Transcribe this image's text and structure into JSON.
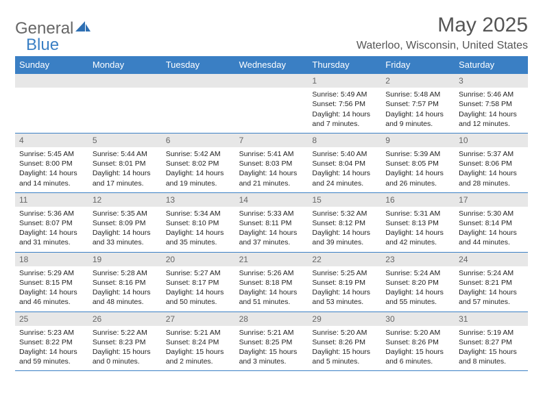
{
  "logo": {
    "text1": "General",
    "text2": "Blue"
  },
  "title": "May 2025",
  "location": "Waterloo, Wisconsin, United States",
  "colors": {
    "header_bg": "#3a7fc4",
    "header_text": "#ffffff",
    "daynum_bg": "#e7e7e7",
    "daynum_text": "#666666",
    "body_text": "#222222",
    "page_bg": "#ffffff"
  },
  "day_names": [
    "Sunday",
    "Monday",
    "Tuesday",
    "Wednesday",
    "Thursday",
    "Friday",
    "Saturday"
  ],
  "weeks": [
    [
      {
        "n": "",
        "sr": "",
        "ss": "",
        "dl": ""
      },
      {
        "n": "",
        "sr": "",
        "ss": "",
        "dl": ""
      },
      {
        "n": "",
        "sr": "",
        "ss": "",
        "dl": ""
      },
      {
        "n": "",
        "sr": "",
        "ss": "",
        "dl": ""
      },
      {
        "n": "1",
        "sr": "Sunrise: 5:49 AM",
        "ss": "Sunset: 7:56 PM",
        "dl": "Daylight: 14 hours and 7 minutes."
      },
      {
        "n": "2",
        "sr": "Sunrise: 5:48 AM",
        "ss": "Sunset: 7:57 PM",
        "dl": "Daylight: 14 hours and 9 minutes."
      },
      {
        "n": "3",
        "sr": "Sunrise: 5:46 AM",
        "ss": "Sunset: 7:58 PM",
        "dl": "Daylight: 14 hours and 12 minutes."
      }
    ],
    [
      {
        "n": "4",
        "sr": "Sunrise: 5:45 AM",
        "ss": "Sunset: 8:00 PM",
        "dl": "Daylight: 14 hours and 14 minutes."
      },
      {
        "n": "5",
        "sr": "Sunrise: 5:44 AM",
        "ss": "Sunset: 8:01 PM",
        "dl": "Daylight: 14 hours and 17 minutes."
      },
      {
        "n": "6",
        "sr": "Sunrise: 5:42 AM",
        "ss": "Sunset: 8:02 PM",
        "dl": "Daylight: 14 hours and 19 minutes."
      },
      {
        "n": "7",
        "sr": "Sunrise: 5:41 AM",
        "ss": "Sunset: 8:03 PM",
        "dl": "Daylight: 14 hours and 21 minutes."
      },
      {
        "n": "8",
        "sr": "Sunrise: 5:40 AM",
        "ss": "Sunset: 8:04 PM",
        "dl": "Daylight: 14 hours and 24 minutes."
      },
      {
        "n": "9",
        "sr": "Sunrise: 5:39 AM",
        "ss": "Sunset: 8:05 PM",
        "dl": "Daylight: 14 hours and 26 minutes."
      },
      {
        "n": "10",
        "sr": "Sunrise: 5:37 AM",
        "ss": "Sunset: 8:06 PM",
        "dl": "Daylight: 14 hours and 28 minutes."
      }
    ],
    [
      {
        "n": "11",
        "sr": "Sunrise: 5:36 AM",
        "ss": "Sunset: 8:07 PM",
        "dl": "Daylight: 14 hours and 31 minutes."
      },
      {
        "n": "12",
        "sr": "Sunrise: 5:35 AM",
        "ss": "Sunset: 8:09 PM",
        "dl": "Daylight: 14 hours and 33 minutes."
      },
      {
        "n": "13",
        "sr": "Sunrise: 5:34 AM",
        "ss": "Sunset: 8:10 PM",
        "dl": "Daylight: 14 hours and 35 minutes."
      },
      {
        "n": "14",
        "sr": "Sunrise: 5:33 AM",
        "ss": "Sunset: 8:11 PM",
        "dl": "Daylight: 14 hours and 37 minutes."
      },
      {
        "n": "15",
        "sr": "Sunrise: 5:32 AM",
        "ss": "Sunset: 8:12 PM",
        "dl": "Daylight: 14 hours and 39 minutes."
      },
      {
        "n": "16",
        "sr": "Sunrise: 5:31 AM",
        "ss": "Sunset: 8:13 PM",
        "dl": "Daylight: 14 hours and 42 minutes."
      },
      {
        "n": "17",
        "sr": "Sunrise: 5:30 AM",
        "ss": "Sunset: 8:14 PM",
        "dl": "Daylight: 14 hours and 44 minutes."
      }
    ],
    [
      {
        "n": "18",
        "sr": "Sunrise: 5:29 AM",
        "ss": "Sunset: 8:15 PM",
        "dl": "Daylight: 14 hours and 46 minutes."
      },
      {
        "n": "19",
        "sr": "Sunrise: 5:28 AM",
        "ss": "Sunset: 8:16 PM",
        "dl": "Daylight: 14 hours and 48 minutes."
      },
      {
        "n": "20",
        "sr": "Sunrise: 5:27 AM",
        "ss": "Sunset: 8:17 PM",
        "dl": "Daylight: 14 hours and 50 minutes."
      },
      {
        "n": "21",
        "sr": "Sunrise: 5:26 AM",
        "ss": "Sunset: 8:18 PM",
        "dl": "Daylight: 14 hours and 51 minutes."
      },
      {
        "n": "22",
        "sr": "Sunrise: 5:25 AM",
        "ss": "Sunset: 8:19 PM",
        "dl": "Daylight: 14 hours and 53 minutes."
      },
      {
        "n": "23",
        "sr": "Sunrise: 5:24 AM",
        "ss": "Sunset: 8:20 PM",
        "dl": "Daylight: 14 hours and 55 minutes."
      },
      {
        "n": "24",
        "sr": "Sunrise: 5:24 AM",
        "ss": "Sunset: 8:21 PM",
        "dl": "Daylight: 14 hours and 57 minutes."
      }
    ],
    [
      {
        "n": "25",
        "sr": "Sunrise: 5:23 AM",
        "ss": "Sunset: 8:22 PM",
        "dl": "Daylight: 14 hours and 59 minutes."
      },
      {
        "n": "26",
        "sr": "Sunrise: 5:22 AM",
        "ss": "Sunset: 8:23 PM",
        "dl": "Daylight: 15 hours and 0 minutes."
      },
      {
        "n": "27",
        "sr": "Sunrise: 5:21 AM",
        "ss": "Sunset: 8:24 PM",
        "dl": "Daylight: 15 hours and 2 minutes."
      },
      {
        "n": "28",
        "sr": "Sunrise: 5:21 AM",
        "ss": "Sunset: 8:25 PM",
        "dl": "Daylight: 15 hours and 3 minutes."
      },
      {
        "n": "29",
        "sr": "Sunrise: 5:20 AM",
        "ss": "Sunset: 8:26 PM",
        "dl": "Daylight: 15 hours and 5 minutes."
      },
      {
        "n": "30",
        "sr": "Sunrise: 5:20 AM",
        "ss": "Sunset: 8:26 PM",
        "dl": "Daylight: 15 hours and 6 minutes."
      },
      {
        "n": "31",
        "sr": "Sunrise: 5:19 AM",
        "ss": "Sunset: 8:27 PM",
        "dl": "Daylight: 15 hours and 8 minutes."
      }
    ]
  ]
}
